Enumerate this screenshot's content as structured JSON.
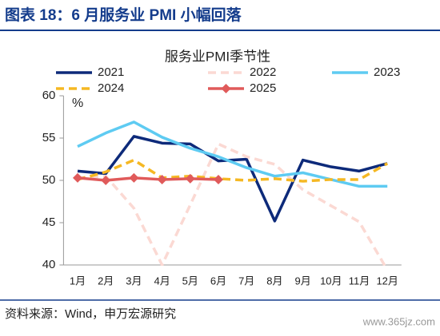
{
  "header": {
    "title": "图表 18：6 月服务业 PMI 小幅回落"
  },
  "chart_data": {
    "type": "line",
    "title": "服务业PMI季节性",
    "y_unit": "%",
    "categories": [
      "1月",
      "2月",
      "3月",
      "4月",
      "5月",
      "6月",
      "7月",
      "8月",
      "9月",
      "10月",
      "11月",
      "12月"
    ],
    "ylim": [
      40,
      60
    ],
    "yticks": [
      40,
      45,
      50,
      55,
      60
    ],
    "series": [
      {
        "name": "2021",
        "color": "#0d2a7a",
        "dashed": false,
        "values": [
          51.1,
          50.8,
          55.2,
          54.4,
          54.3,
          52.3,
          52.5,
          45.2,
          52.4,
          51.6,
          51.1,
          52.0
        ]
      },
      {
        "name": "2022",
        "color": "#fbd9d3",
        "dashed": true,
        "values": [
          50.3,
          50.5,
          46.7,
          40.0,
          47.1,
          54.3,
          52.8,
          51.9,
          48.9,
          47.0,
          45.1,
          39.4
        ]
      },
      {
        "name": "2023",
        "color": "#5ecbf2",
        "dashed": false,
        "values": [
          54.0,
          55.6,
          56.9,
          55.1,
          53.8,
          52.8,
          51.5,
          50.5,
          50.9,
          50.1,
          49.3,
          49.3
        ]
      },
      {
        "name": "2024",
        "color": "#f5b823",
        "dashed": true,
        "values": [
          50.1,
          51.0,
          52.4,
          50.3,
          50.5,
          50.2,
          50.0,
          50.2,
          49.9,
          50.1,
          50.1,
          52.0
        ]
      },
      {
        "name": "2025",
        "color": "#e05a5a",
        "dashed": false,
        "marker": "diamond",
        "values": [
          50.3,
          50.0,
          50.3,
          50.1,
          50.2,
          50.1,
          null,
          null,
          null,
          null,
          null,
          null
        ]
      }
    ]
  },
  "footer": {
    "source": "资料来源：Wind，申万宏源研究",
    "watermark": "www.365jz.com"
  }
}
